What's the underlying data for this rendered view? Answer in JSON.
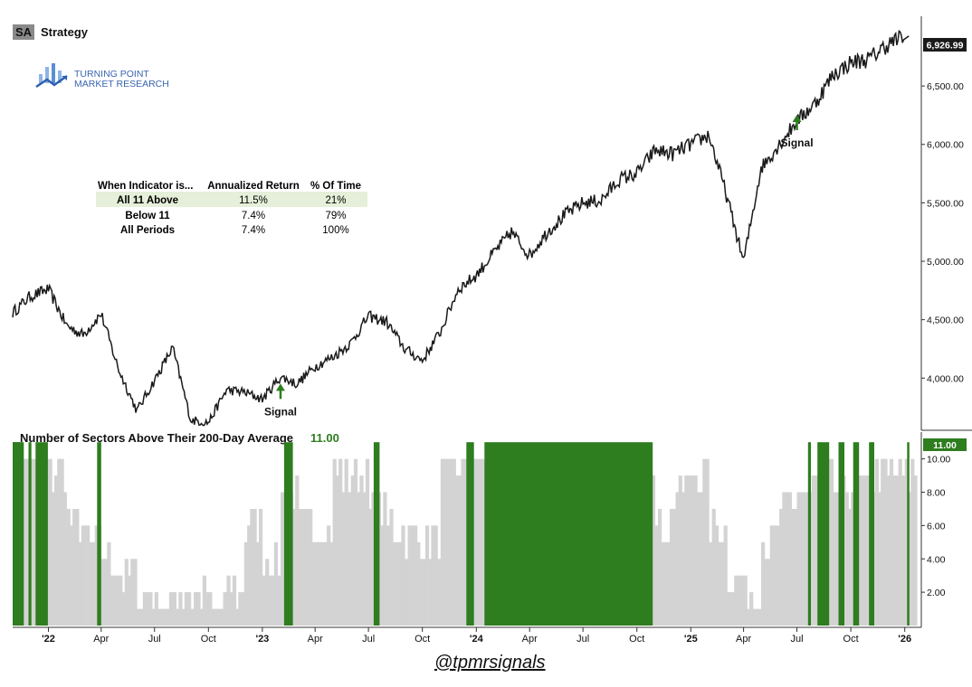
{
  "header": {
    "ticker": "SA",
    "name": "Strategy",
    "logo_line1": "TURNING POINT",
    "logo_line2": "MARKET RESEARCH"
  },
  "stats_table": {
    "headers": [
      "When Indicator is...",
      "Annualized Return",
      "% Of Time"
    ],
    "rows": [
      [
        "All 11 Above",
        "11.5%",
        "21%"
      ],
      [
        "Below 11",
        "7.4%",
        "79%"
      ],
      [
        "All Periods",
        "7.4%",
        "100%"
      ]
    ],
    "highlight_color": "#e6efd9"
  },
  "handle": "@tpmrsignals",
  "colors": {
    "price_line": "#1a1a1a",
    "bar_green": "#2e7d1f",
    "bar_gray": "#d3d3d3",
    "last_value_bg": "#1a1a1a",
    "indicator_value": "#2e7d1f"
  },
  "chart_data": [
    {
      "type": "line",
      "title": "Strategy",
      "ylim": [
        3600,
        7050
      ],
      "yticks": [
        4000,
        4500,
        5000,
        5500,
        6000,
        6500
      ],
      "ytick_labels": [
        "4,000.00",
        "4,500.00",
        "5,000.00",
        "5,500.00",
        "6,000.00",
        "6,500.00"
      ],
      "last_value": 6926.99,
      "last_value_label": "6,926.99",
      "x_axis_dates": [
        "2021-11",
        "2026-01"
      ],
      "series": [
        {
          "x": [
            "2021-11",
            "2021-12",
            "2022-01",
            "2022-02",
            "2022-03",
            "2022-04",
            "2022-05",
            "2022-06",
            "2022-07",
            "2022-08",
            "2022-09",
            "2022-10",
            "2022-11",
            "2022-12",
            "2023-01",
            "2023-02",
            "2023-03",
            "2023-04",
            "2023-05",
            "2023-06",
            "2023-07",
            "2023-08",
            "2023-09",
            "2023-10",
            "2023-11",
            "2023-12",
            "2024-01",
            "2024-02",
            "2024-03",
            "2024-04",
            "2024-05",
            "2024-06",
            "2024-07",
            "2024-08",
            "2024-09",
            "2024-10",
            "2024-11",
            "2024-12",
            "2025-01",
            "2025-02",
            "2025-03",
            "2025-04",
            "2025-05",
            "2025-06",
            "2025-07",
            "2025-08",
            "2025-09",
            "2025-10",
            "2025-11",
            "2025-12",
            "2026-01"
          ],
          "values": [
            4560,
            4700,
            4760,
            4450,
            4370,
            4550,
            4070,
            3720,
            3980,
            4260,
            3640,
            3620,
            3900,
            3880,
            3820,
            4010,
            3950,
            4100,
            4180,
            4300,
            4530,
            4480,
            4250,
            4150,
            4400,
            4760,
            4880,
            5080,
            5250,
            5050,
            5250,
            5400,
            5500,
            5520,
            5700,
            5750,
            5950,
            5920,
            6000,
            6080,
            5600,
            5000,
            5800,
            6000,
            6200,
            6350,
            6600,
            6700,
            6730,
            6850,
            6927
          ]
        }
      ],
      "annotations": [
        {
          "text": "Signal",
          "x": "2023-02",
          "y": 3930
        },
        {
          "text": "Signal",
          "x": "2025-07",
          "y": 6230
        }
      ]
    },
    {
      "type": "bar",
      "title": "Number of Sectors Above Their 200-Day Average",
      "current_value_label": "11.00",
      "ylim": [
        0,
        11.5
      ],
      "yticks": [
        2,
        4,
        6,
        8,
        10
      ],
      "ytick_labels": [
        "2.00",
        "4.00",
        "6.00",
        "8.00",
        "10.00"
      ],
      "x_tick_labels": [
        "'22",
        "Apr",
        "Jul",
        "Oct",
        "'23",
        "Apr",
        "Jul",
        "Oct",
        "'24",
        "Apr",
        "Jul",
        "Oct",
        "'25",
        "Apr",
        "Jul",
        "Oct",
        "'26"
      ],
      "x_tick_dates": [
        "2022-01",
        "2022-04",
        "2022-07",
        "2022-10",
        "2023-01",
        "2023-04",
        "2023-07",
        "2023-10",
        "2024-01",
        "2024-04",
        "2024-07",
        "2024-10",
        "2025-01",
        "2025-04",
        "2025-07",
        "2025-10",
        "2026-01"
      ],
      "series": [
        {
          "name": "All 11 Above",
          "segments": [
            [
              "2021-11-01",
              "2021-11-20"
            ],
            [
              "2021-11-28",
              "2021-12-03"
            ],
            [
              "2021-12-10",
              "2021-12-31"
            ],
            [
              "2022-03-25",
              "2022-04-01"
            ],
            [
              "2023-02-07",
              "2023-02-22"
            ],
            [
              "2023-07-10",
              "2023-07-20"
            ],
            [
              "2023-12-15",
              "2023-12-28"
            ],
            [
              "2024-01-15",
              "2024-10-28"
            ],
            [
              "2025-07-20",
              "2025-07-25"
            ],
            [
              "2025-08-05",
              "2025-08-25"
            ],
            [
              "2025-09-10",
              "2025-09-20"
            ],
            [
              "2025-10-05",
              "2025-10-15"
            ],
            [
              "2025-11-01",
              "2025-11-10"
            ],
            [
              "2026-01-05",
              "2026-01-08"
            ]
          ]
        },
        {
          "name": "Below 11",
          "values_monthly": [
            11,
            11,
            9,
            6,
            5,
            4,
            3,
            2,
            1,
            2,
            2,
            1,
            2,
            6,
            4,
            8,
            6,
            6,
            9,
            9,
            7,
            6,
            5,
            5,
            9,
            10,
            10,
            10,
            10,
            10,
            10,
            10,
            10,
            10,
            10,
            10,
            6,
            8,
            9,
            6,
            3,
            2,
            5,
            7,
            8,
            9,
            8,
            8,
            9,
            9,
            9
          ]
        }
      ]
    }
  ]
}
